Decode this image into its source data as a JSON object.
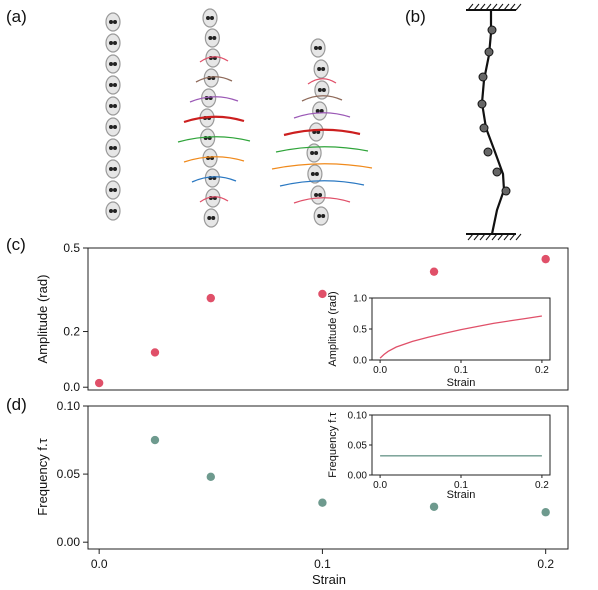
{
  "panels": {
    "a": "(a)",
    "b": "(b)",
    "c": "(c)",
    "d": "(d)"
  },
  "colors": {
    "amplitude": "#e05069",
    "frequency": "#6e9a8e",
    "chain": "#9a9a9a",
    "trace_colors": [
      "#e05069",
      "#8f6a5a",
      "#9b59b6",
      "#cc1f1f",
      "#2fa43a",
      "#f08a1c",
      "#2a78c2"
    ]
  },
  "chart_data": [
    {
      "id": "c",
      "type": "scatter",
      "title": "",
      "xlabel": "",
      "ylabel": "Amplitude (rad)",
      "xlim": [
        -0.005,
        0.21
      ],
      "ylim": [
        -0.01,
        0.5
      ],
      "yticks": [
        0.0,
        0.2,
        0.5
      ],
      "ytick_labels": [
        "0.0",
        "0.2",
        "0.5"
      ],
      "series": [
        {
          "x": [
            0.0,
            0.025,
            0.05,
            0.1,
            0.15,
            0.2
          ],
          "y": [
            0.015,
            0.125,
            0.32,
            0.335,
            0.415,
            0.46
          ]
        }
      ],
      "inset": {
        "type": "line",
        "xlabel": "Strain",
        "ylabel": "Amplitude (rad)",
        "xlim": [
          -0.01,
          0.21
        ],
        "ylim": [
          0.0,
          1.0
        ],
        "xticks": [
          0.0,
          0.1,
          0.2
        ],
        "xtick_labels": [
          "0.0",
          "0.1",
          "0.2"
        ],
        "yticks": [
          0.0,
          0.5,
          1.0
        ],
        "ytick_labels": [
          "0.0",
          "0.5",
          "1.0"
        ],
        "series": [
          {
            "x": [
              0.0,
              0.005,
              0.01,
              0.02,
              0.04,
              0.06,
              0.08,
              0.1,
              0.12,
              0.14,
              0.16,
              0.18,
              0.2
            ],
            "y": [
              0.03,
              0.09,
              0.14,
              0.21,
              0.3,
              0.37,
              0.43,
              0.49,
              0.54,
              0.59,
              0.63,
              0.67,
              0.71
            ]
          }
        ]
      }
    },
    {
      "id": "d",
      "type": "scatter",
      "title": "",
      "xlabel": "Strain",
      "ylabel": "Frequency f.τ",
      "xlim": [
        -0.005,
        0.21
      ],
      "ylim": [
        -0.005,
        0.1
      ],
      "xticks": [
        0.0,
        0.1,
        0.2
      ],
      "xtick_labels": [
        "0.0",
        "0.1",
        "0.2"
      ],
      "yticks": [
        0.0,
        0.05,
        0.1
      ],
      "ytick_labels": [
        "0.00",
        "0.05",
        "0.10"
      ],
      "series": [
        {
          "x": [
            0.025,
            0.05,
            0.1,
            0.15,
            0.2
          ],
          "y": [
            0.075,
            0.048,
            0.029,
            0.026,
            0.022
          ]
        }
      ],
      "inset": {
        "type": "line",
        "xlabel": "Strain",
        "ylabel": "Frequency f.τ",
        "xlim": [
          -0.01,
          0.21
        ],
        "ylim": [
          0.0,
          0.1
        ],
        "xticks": [
          0.0,
          0.1,
          0.2
        ],
        "xtick_labels": [
          "0.0",
          "0.1",
          "0.2"
        ],
        "yticks": [
          0.0,
          0.05,
          0.1
        ],
        "ytick_labels": [
          "0.00",
          "0.05",
          "0.10"
        ],
        "series": [
          {
            "x": [
              0.0,
              0.2
            ],
            "y": [
              0.032,
              0.032
            ]
          }
        ]
      }
    }
  ]
}
